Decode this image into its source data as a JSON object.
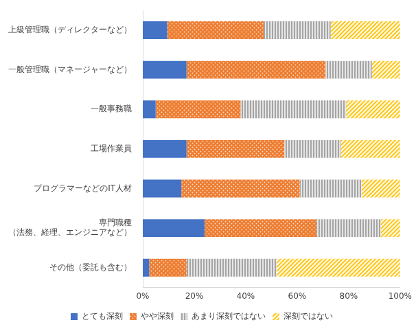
{
  "chart_data": {
    "type": "bar",
    "orientation": "horizontal",
    "stacked": true,
    "grid": false,
    "legend": "bottom",
    "categories": [
      "上級管理職（ディレクターなど）",
      "一般管理職（マネージャーなど）",
      "一般事務職",
      "工場作業員",
      "プログラマーなどのIT人材",
      "専門職種\n（法務、経理、エンジニアなど）",
      "その他（委託も含む）"
    ],
    "series": [
      {
        "name": "とても深刻",
        "color": "#4472c4",
        "values": [
          9.5,
          17,
          5,
          17,
          15,
          24,
          2.5
        ]
      },
      {
        "name": "やや深刻",
        "color": "#ed7d31",
        "values": [
          37.5,
          54,
          33,
          38,
          46,
          43.5,
          14.5
        ]
      },
      {
        "name": "あまり深刻ではない",
        "color": "#a5a5a5",
        "values": [
          26,
          18,
          41,
          22,
          24,
          25,
          35
        ]
      },
      {
        "name": "深刻ではない",
        "color": "#ffc000",
        "values": [
          27,
          11,
          21,
          23,
          15,
          7.5,
          48
        ]
      }
    ],
    "xlim": [
      0,
      100
    ],
    "xticks": [
      {
        "value": 0,
        "label": "0%"
      },
      {
        "value": 20,
        "label": "20%"
      },
      {
        "value": 40,
        "label": "40%"
      },
      {
        "value": 60,
        "label": "60%"
      },
      {
        "value": 80,
        "label": "80%"
      },
      {
        "value": 100,
        "label": "100%"
      }
    ]
  }
}
